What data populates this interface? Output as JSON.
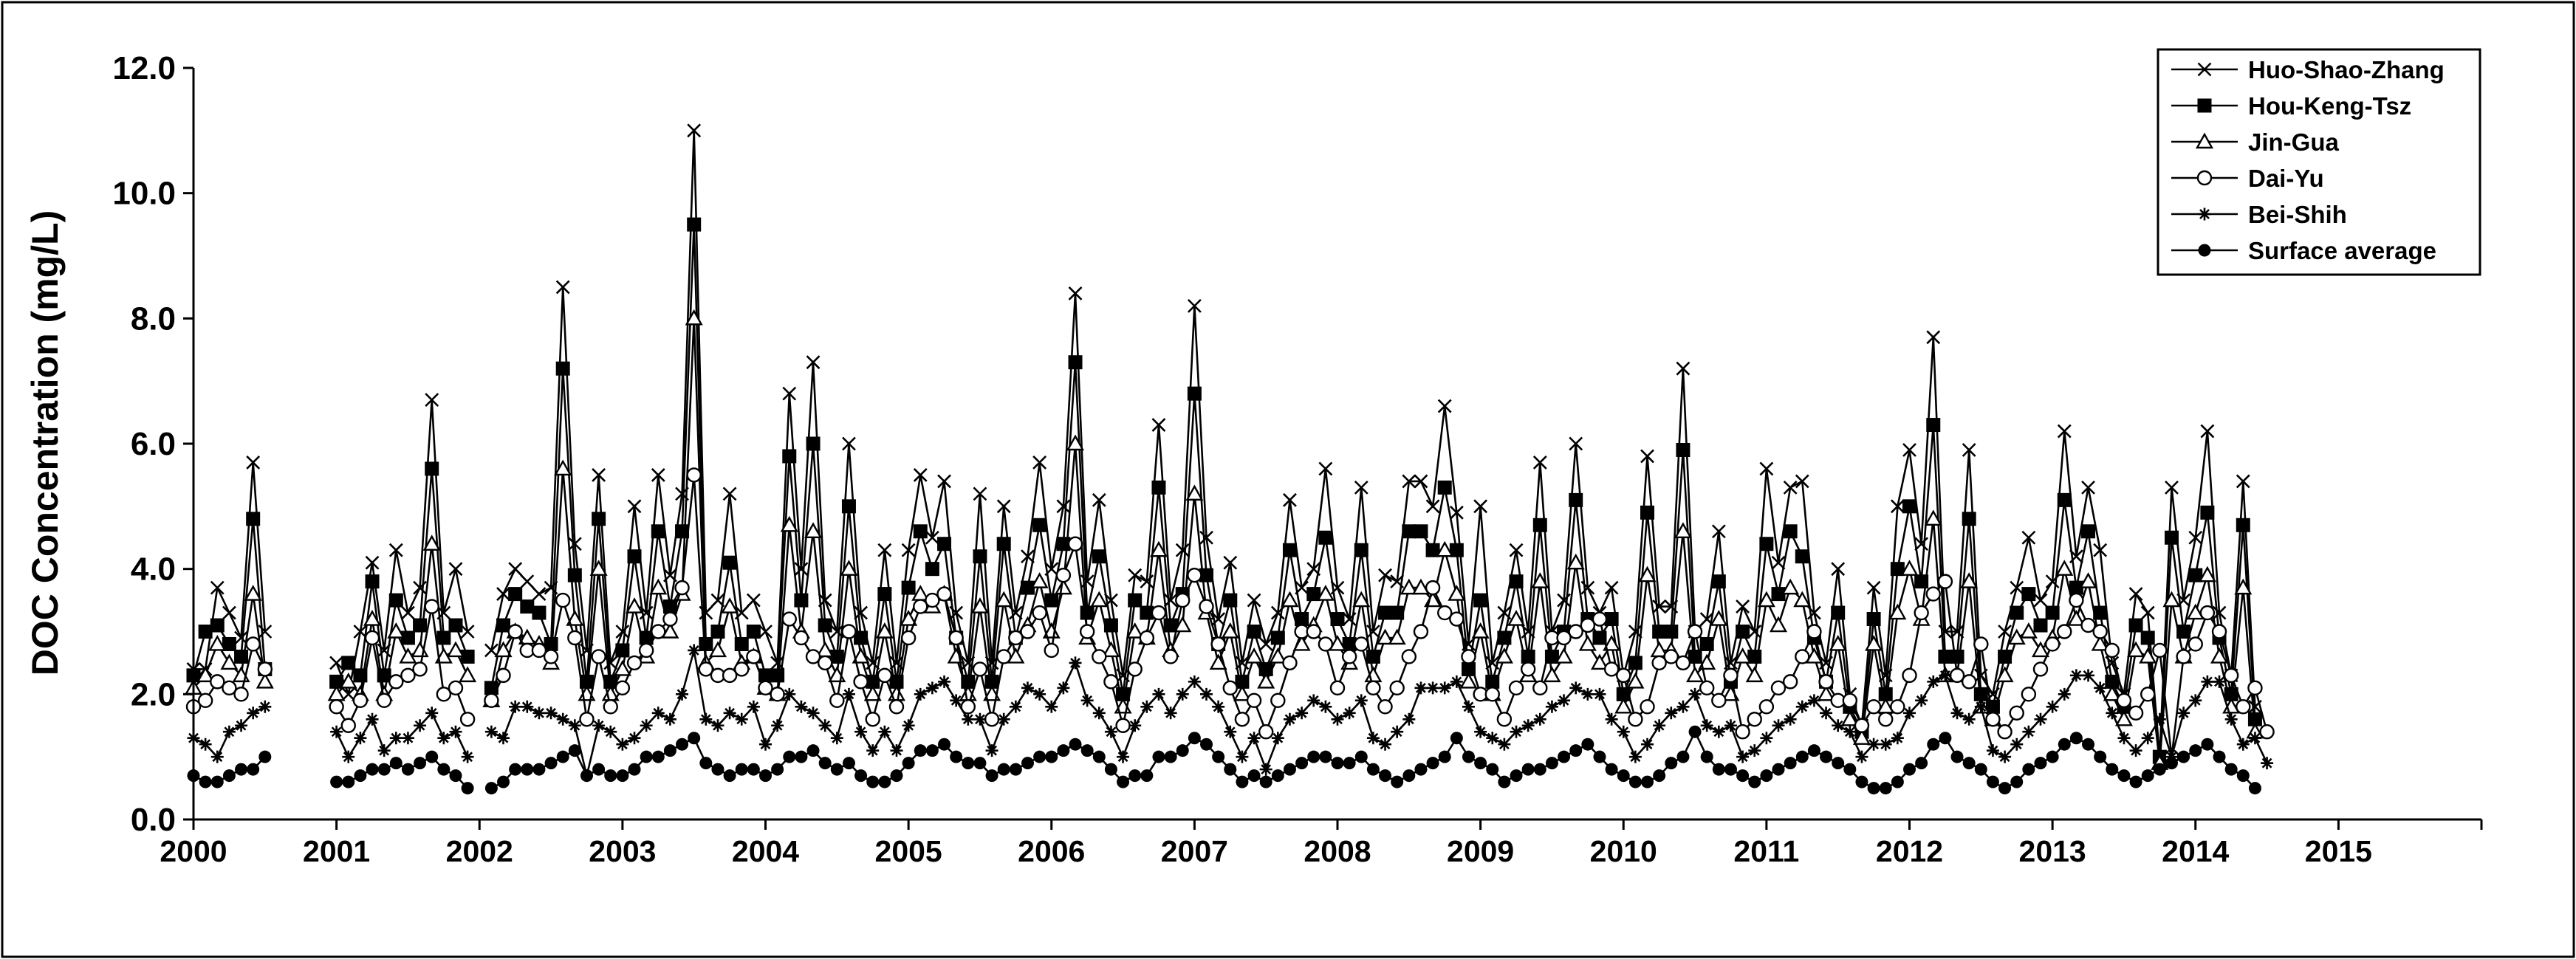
{
  "chart_data": {
    "type": "line",
    "title": "",
    "xlabel": "",
    "ylabel": "DOC Concentration (mg/L)",
    "ylim": [
      0,
      12
    ],
    "yticks": [
      "0.0",
      "2.0",
      "4.0",
      "6.0",
      "8.0",
      "10.0",
      "12.0"
    ],
    "xticks": [
      "2000",
      "2001",
      "2002",
      "2003",
      "2004",
      "2005",
      "2006",
      "2007",
      "2008",
      "2009",
      "2010",
      "2011",
      "2012",
      "2013",
      "2014",
      "2015"
    ],
    "x_range": [
      2000,
      2016
    ],
    "legend_position": "top-right",
    "grid": false,
    "series": [
      {
        "name": "Huo-Shao-Zhang",
        "marker": "x",
        "values": [
          2.4,
          2.4,
          3.7,
          3.3,
          2.9,
          5.7,
          3.0,
          null,
          null,
          null,
          null,
          null,
          2.5,
          2.0,
          3.0,
          4.1,
          2.7,
          4.3,
          3.3,
          3.7,
          6.7,
          3.3,
          4.0,
          3.0,
          null,
          2.7,
          3.6,
          4.0,
          3.8,
          3.6,
          3.7,
          8.5,
          4.4,
          2.7,
          5.5,
          2.5,
          3.0,
          5.0,
          3.3,
          5.5,
          3.9,
          5.2,
          11.0,
          3.3,
          3.5,
          5.2,
          3.3,
          3.5,
          3.0,
          2.5,
          6.8,
          4.0,
          7.3,
          3.5,
          3.0,
          6.0,
          3.3,
          2.5,
          4.3,
          2.5,
          4.3,
          5.5,
          4.5,
          5.4,
          3.3,
          2.5,
          5.2,
          2.5,
          5.0,
          3.3,
          4.2,
          5.7,
          4.0,
          5.0,
          8.4,
          3.8,
          5.1,
          3.5,
          2.3,
          3.9,
          3.8,
          6.3,
          3.5,
          4.3,
          8.2,
          4.5,
          3.2,
          4.1,
          2.5,
          3.5,
          2.8,
          3.3,
          5.1,
          3.7,
          4.0,
          5.6,
          3.7,
          3.2,
          5.3,
          3.0,
          3.9,
          3.8,
          5.4,
          5.4,
          5.0,
          6.6,
          4.9,
          2.8,
          5.0,
          2.5,
          3.3,
          4.3,
          3.0,
          5.7,
          3.0,
          3.5,
          6.0,
          3.7,
          3.3,
          3.7,
          2.3,
          3.0,
          5.8,
          3.4,
          3.4,
          7.2,
          3.0,
          3.2,
          4.6,
          2.5,
          3.4,
          3.0,
          5.6,
          4.1,
          5.3,
          5.4,
          3.3,
          2.5,
          4.0,
          2.0,
          1.5,
          3.7,
          2.3,
          5.0,
          5.9,
          4.4,
          7.7,
          3.0,
          3.0,
          5.9,
          2.3,
          2.0,
          3.0,
          3.7,
          4.5,
          3.5,
          3.8,
          6.2,
          4.2,
          5.3,
          4.3,
          2.5,
          2.0,
          3.6,
          3.3,
          1.0,
          5.3,
          3.5,
          4.5,
          6.2,
          3.3,
          2.3,
          5.4,
          1.8
        ]
      },
      {
        "name": "Hou-Keng-Tsz",
        "marker": "filled-square",
        "values": [
          2.3,
          3.0,
          3.1,
          2.8,
          2.6,
          4.8,
          2.4,
          null,
          null,
          null,
          null,
          null,
          2.2,
          2.5,
          2.3,
          3.8,
          2.3,
          3.5,
          2.9,
          3.1,
          5.6,
          2.9,
          3.1,
          2.6,
          null,
          2.1,
          3.1,
          3.6,
          3.4,
          3.3,
          2.8,
          7.2,
          3.9,
          2.2,
          4.8,
          2.2,
          2.7,
          4.2,
          2.9,
          4.6,
          3.4,
          4.6,
          9.5,
          2.8,
          3.0,
          4.1,
          2.8,
          3.0,
          2.3,
          2.3,
          5.8,
          3.5,
          6.0,
          3.1,
          2.6,
          5.0,
          2.9,
          2.2,
          3.6,
          2.2,
          3.7,
          4.6,
          4.0,
          4.4,
          2.9,
          2.2,
          4.2,
          2.2,
          4.4,
          2.9,
          3.7,
          4.7,
          3.5,
          4.4,
          7.3,
          3.3,
          4.2,
          3.1,
          2.0,
          3.5,
          3.3,
          5.3,
          3.1,
          3.6,
          6.8,
          3.9,
          2.8,
          3.5,
          2.2,
          3.0,
          2.4,
          2.9,
          4.3,
          3.2,
          3.6,
          4.5,
          3.2,
          2.8,
          4.3,
          2.6,
          3.3,
          3.3,
          4.6,
          4.6,
          4.3,
          5.3,
          4.3,
          2.4,
          3.5,
          2.2,
          2.9,
          3.8,
          2.6,
          4.7,
          2.6,
          3.0,
          5.1,
          3.2,
          2.9,
          3.2,
          2.0,
          2.5,
          4.9,
          3.0,
          3.0,
          5.9,
          2.6,
          2.8,
          3.8,
          2.2,
          3.0,
          2.6,
          4.4,
          3.6,
          4.6,
          4.2,
          2.9,
          2.2,
          3.3,
          1.8,
          1.4,
          3.2,
          2.0,
          4.0,
          5.0,
          3.8,
          6.3,
          2.6,
          2.6,
          4.8,
          2.0,
          1.8,
          2.6,
          3.3,
          3.6,
          3.1,
          3.3,
          5.1,
          3.7,
          4.6,
          3.3,
          2.2,
          1.8,
          3.1,
          2.9,
          1.0,
          4.5,
          3.0,
          3.9,
          4.9,
          2.9,
          2.0,
          4.7,
          1.6
        ]
      },
      {
        "name": "Jin-Gua",
        "marker": "open-triangle",
        "values": [
          2.1,
          2.3,
          2.8,
          2.5,
          2.3,
          3.6,
          2.2,
          null,
          null,
          null,
          null,
          null,
          2.0,
          2.2,
          2.0,
          3.2,
          2.0,
          3.0,
          2.6,
          2.7,
          4.4,
          2.6,
          2.7,
          2.3,
          null,
          1.9,
          2.7,
          3.0,
          2.9,
          2.8,
          2.5,
          5.6,
          3.2,
          2.0,
          4.0,
          2.0,
          2.4,
          3.4,
          2.6,
          3.7,
          3.0,
          3.6,
          8.0,
          2.5,
          2.7,
          3.4,
          2.5,
          2.6,
          2.1,
          2.0,
          4.7,
          3.0,
          4.6,
          2.7,
          2.3,
          4.0,
          2.6,
          2.0,
          3.0,
          2.0,
          3.2,
          3.6,
          3.4,
          3.6,
          2.6,
          2.0,
          3.4,
          2.0,
          3.5,
          2.6,
          3.1,
          3.8,
          3.0,
          3.7,
          6.0,
          2.9,
          3.5,
          2.7,
          1.8,
          3.0,
          2.9,
          4.3,
          2.7,
          3.1,
          5.2,
          3.3,
          2.5,
          3.0,
          2.0,
          2.6,
          2.2,
          2.6,
          3.5,
          2.8,
          3.1,
          3.6,
          2.8,
          2.5,
          3.5,
          2.3,
          2.9,
          2.9,
          3.7,
          3.7,
          3.5,
          4.3,
          3.6,
          2.2,
          3.0,
          2.0,
          2.6,
          3.2,
          2.3,
          3.8,
          2.3,
          2.6,
          4.1,
          2.8,
          2.5,
          2.8,
          1.8,
          2.2,
          3.9,
          2.7,
          2.7,
          4.6,
          2.3,
          2.5,
          3.2,
          2.0,
          2.6,
          2.3,
          3.5,
          3.1,
          3.7,
          3.5,
          2.6,
          2.0,
          2.8,
          1.6,
          1.3,
          2.8,
          1.8,
          3.3,
          4.0,
          3.2,
          4.8,
          2.3,
          2.3,
          3.8,
          1.8,
          1.6,
          2.3,
          2.9,
          3.0,
          2.7,
          2.9,
          4.0,
          3.2,
          3.8,
          2.8,
          2.0,
          1.6,
          2.7,
          2.6,
          0.9,
          3.5,
          2.6,
          3.3,
          3.9,
          2.6,
          1.8,
          3.7,
          1.4
        ]
      },
      {
        "name": "Dai-Yu",
        "marker": "open-circle",
        "values": [
          1.8,
          1.9,
          2.2,
          2.1,
          2.0,
          2.8,
          2.4,
          null,
          null,
          null,
          null,
          null,
          1.8,
          1.5,
          1.9,
          2.9,
          1.9,
          2.2,
          2.3,
          2.4,
          3.4,
          2.0,
          2.1,
          1.6,
          null,
          1.9,
          2.3,
          3.0,
          2.7,
          2.7,
          2.6,
          3.5,
          2.9,
          1.6,
          2.6,
          1.8,
          2.1,
          2.5,
          2.7,
          3.0,
          3.2,
          3.7,
          5.5,
          2.4,
          2.3,
          2.3,
          2.4,
          2.6,
          2.1,
          2.0,
          3.2,
          2.9,
          2.6,
          2.5,
          1.9,
          3.0,
          2.2,
          1.6,
          2.3,
          1.8,
          2.9,
          3.4,
          3.5,
          3.6,
          2.9,
          1.8,
          2.4,
          1.6,
          2.6,
          2.9,
          3.0,
          3.3,
          2.7,
          3.9,
          4.4,
          3.0,
          2.6,
          2.2,
          1.5,
          2.4,
          2.9,
          3.3,
          2.6,
          3.5,
          3.9,
          3.4,
          2.8,
          2.1,
          1.6,
          1.9,
          1.4,
          1.9,
          2.5,
          3.0,
          3.0,
          2.8,
          2.1,
          2.6,
          2.8,
          2.1,
          1.8,
          2.1,
          2.6,
          3.0,
          3.7,
          3.3,
          3.2,
          2.6,
          2.0,
          2.0,
          1.6,
          2.1,
          2.4,
          2.1,
          2.9,
          2.9,
          3.0,
          3.1,
          3.2,
          2.4,
          2.3,
          1.6,
          1.8,
          2.5,
          2.6,
          2.5,
          3.0,
          2.1,
          1.9,
          2.3,
          1.4,
          1.6,
          1.8,
          2.1,
          2.2,
          2.6,
          3.0,
          2.2,
          1.9,
          1.9,
          1.5,
          1.8,
          1.6,
          1.8,
          2.3,
          3.3,
          3.6,
          3.8,
          2.3,
          2.2,
          2.8,
          1.6,
          1.4,
          1.7,
          2.0,
          2.4,
          2.8,
          3.0,
          3.5,
          3.1,
          3.0,
          2.7,
          1.9,
          1.7,
          2.0,
          2.7,
          1.0,
          2.6,
          2.8,
          3.3,
          3.0,
          2.3,
          1.8,
          2.1,
          1.4
        ]
      },
      {
        "name": "Bei-Shih",
        "marker": "asterisk",
        "values": [
          1.3,
          1.2,
          1.0,
          1.4,
          1.5,
          1.7,
          1.8,
          null,
          null,
          null,
          null,
          null,
          1.4,
          1.0,
          1.3,
          1.6,
          1.1,
          1.3,
          1.3,
          1.5,
          1.7,
          1.3,
          1.4,
          1.0,
          null,
          1.4,
          1.3,
          1.8,
          1.8,
          1.7,
          1.7,
          1.6,
          1.5,
          0.7,
          1.5,
          1.4,
          1.2,
          1.3,
          1.5,
          1.7,
          1.6,
          2.0,
          2.7,
          1.6,
          1.5,
          1.7,
          1.6,
          1.8,
          1.2,
          1.5,
          2.0,
          1.8,
          1.7,
          1.5,
          1.3,
          2.0,
          1.4,
          1.1,
          1.4,
          1.1,
          1.5,
          2.0,
          2.1,
          2.2,
          1.9,
          1.6,
          1.6,
          1.1,
          1.6,
          1.8,
          2.1,
          2.0,
          1.8,
          2.1,
          2.5,
          1.9,
          1.7,
          1.4,
          1.0,
          1.5,
          1.8,
          2.0,
          1.7,
          2.0,
          2.2,
          2.0,
          1.8,
          1.4,
          1.0,
          1.3,
          0.8,
          1.3,
          1.6,
          1.7,
          1.9,
          1.8,
          1.6,
          1.7,
          1.9,
          1.3,
          1.2,
          1.4,
          1.6,
          2.1,
          2.1,
          2.1,
          2.2,
          1.8,
          1.4,
          1.3,
          1.2,
          1.4,
          1.5,
          1.6,
          1.8,
          1.9,
          2.1,
          2.0,
          2.0,
          1.6,
          1.4,
          1.0,
          1.2,
          1.5,
          1.7,
          1.8,
          2.0,
          1.5,
          1.4,
          1.5,
          1.0,
          1.1,
          1.3,
          1.5,
          1.6,
          1.8,
          1.9,
          1.7,
          1.5,
          1.4,
          1.0,
          1.2,
          1.2,
          1.3,
          1.7,
          1.9,
          2.2,
          2.3,
          1.7,
          1.6,
          1.8,
          1.1,
          1.0,
          1.2,
          1.4,
          1.6,
          1.8,
          2.0,
          2.3,
          2.3,
          2.1,
          1.7,
          1.3,
          1.1,
          1.3,
          1.6,
          1.0,
          1.7,
          1.9,
          2.2,
          2.2,
          1.6,
          1.2,
          1.3,
          0.9
        ]
      },
      {
        "name": "Surface average",
        "marker": "filled-circle",
        "values": [
          0.7,
          0.6,
          0.6,
          0.7,
          0.8,
          0.8,
          1.0,
          null,
          null,
          null,
          null,
          null,
          0.6,
          0.6,
          0.7,
          0.8,
          0.8,
          0.9,
          0.8,
          0.9,
          1.0,
          0.8,
          0.7,
          0.5,
          null,
          0.5,
          0.6,
          0.8,
          0.8,
          0.8,
          0.9,
          1.0,
          1.1,
          0.7,
          0.8,
          0.7,
          0.7,
          0.8,
          1.0,
          1.0,
          1.1,
          1.2,
          1.3,
          0.9,
          0.8,
          0.7,
          0.8,
          0.8,
          0.7,
          0.8,
          1.0,
          1.0,
          1.1,
          0.9,
          0.8,
          0.9,
          0.7,
          0.6,
          0.6,
          0.7,
          0.9,
          1.1,
          1.1,
          1.2,
          1.0,
          0.9,
          0.9,
          0.7,
          0.8,
          0.8,
          0.9,
          1.0,
          1.0,
          1.1,
          1.2,
          1.1,
          1.0,
          0.8,
          0.6,
          0.7,
          0.7,
          1.0,
          1.0,
          1.1,
          1.3,
          1.2,
          1.0,
          0.8,
          0.6,
          0.7,
          0.6,
          0.7,
          0.8,
          0.9,
          1.0,
          1.0,
          0.9,
          0.9,
          1.0,
          0.8,
          0.7,
          0.6,
          0.7,
          0.8,
          0.9,
          1.0,
          1.3,
          1.0,
          0.9,
          0.8,
          0.6,
          0.7,
          0.8,
          0.8,
          0.9,
          1.0,
          1.1,
          1.2,
          1.0,
          0.8,
          0.7,
          0.6,
          0.6,
          0.7,
          0.9,
          1.0,
          1.4,
          1.0,
          0.8,
          0.8,
          0.7,
          0.6,
          0.7,
          0.8,
          0.9,
          1.0,
          1.1,
          1.0,
          0.9,
          0.8,
          0.6,
          0.5,
          0.5,
          0.6,
          0.8,
          0.9,
          1.2,
          1.3,
          1.0,
          0.9,
          0.8,
          0.6,
          0.5,
          0.6,
          0.8,
          0.9,
          1.0,
          1.2,
          1.3,
          1.2,
          1.0,
          0.8,
          0.7,
          0.6,
          0.7,
          0.8,
          0.9,
          1.0,
          1.1,
          1.2,
          1.0,
          0.8,
          0.7,
          0.5
        ]
      }
    ]
  }
}
